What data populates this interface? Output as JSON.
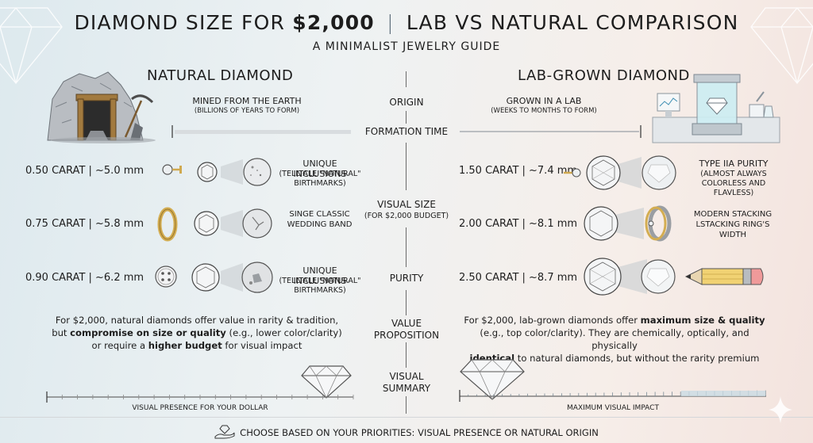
{
  "header": {
    "title_part1": "Diamond size for",
    "title_price": "$2,000",
    "title_sep": "|",
    "title_part2": "Lab vs Natural Comparison",
    "subtitle": "A Minimalist Jewelry Guide"
  },
  "natural": {
    "heading": "Natural Diamond",
    "origin_title": "Mined from the Earth",
    "origin_sub": "(Billions of years to form)",
    "rows": [
      {
        "carat": "0.50 CARAT | ~5.0 mm",
        "note_title": "Unique inclusions",
        "note_sub": "(Telltale \"natural\" birthmarks)"
      },
      {
        "carat": "0.75 CARAT | ~5.8 mm",
        "note_title": "Singe classic wedding band",
        "note_sub": ""
      },
      {
        "carat": "0.90 CARAT | ~6.2 mm",
        "note_title": "Unique inclusions",
        "note_sub": "(Telltale \"natural\" birthmarks)"
      }
    ],
    "value_line1": "For $2,000, natural diamonds offer value in rarity & tradition,",
    "value_line2_pre": "but ",
    "value_line2_bold": "compromise on size or quality",
    "value_line2_post": " (e.g., lower color/clarity)",
    "value_line3_pre": "or require a ",
    "value_line3_bold": "higher budget",
    "value_line3_post": " for visual impact",
    "scale_caption": "Visual presence for your dollar"
  },
  "lab": {
    "heading": "Lab-Grown Diamond",
    "origin_title": "Grown in a lab",
    "origin_sub": "(Weeks to months to form)",
    "rows": [
      {
        "carat": "1.50 CARAT | ~7.4 mm",
        "note_title": "Type IIa purity",
        "note_sub": "(Almost always colorless and flavless)"
      },
      {
        "carat": "2.00 CARAT | ~8.1 mm",
        "note_title": "Modern stacking lstacking ring's width",
        "note_sub": ""
      },
      {
        "carat": "2.50 CARAT | ~8.7 mm",
        "note_title": "",
        "note_sub": ""
      }
    ],
    "value_line1_pre": "For $2,000, lab-grown diamonds offer ",
    "value_line1_bold": "maximum size & quality",
    "value_line2": "(e.g., top color/clarity). They are chemically, optically, and physically",
    "value_line3_bold": "identical",
    "value_line3_post": " to natural diamonds, but without the rarity premium",
    "scale_caption": "Maximum visual impact"
  },
  "center": {
    "origin": "Origin",
    "formation": "Formation time",
    "visual_size": "Visual size",
    "visual_size_sub": "(for $2,000 budget)",
    "purity": "Purity",
    "value_prop_1": "Value",
    "value_prop_2": "Proposition",
    "visual_summary_1": "Visual",
    "visual_summary_2": "Summary"
  },
  "footer": {
    "text": "Choose based on your priorities: visual presence or natural origin",
    "icon": "hand-diamond-icon"
  },
  "colors": {
    "text": "#1d1d1d",
    "divider": "#6b6b6b",
    "gold": "#d9b860",
    "pencil_pink": "#f09a9a"
  }
}
